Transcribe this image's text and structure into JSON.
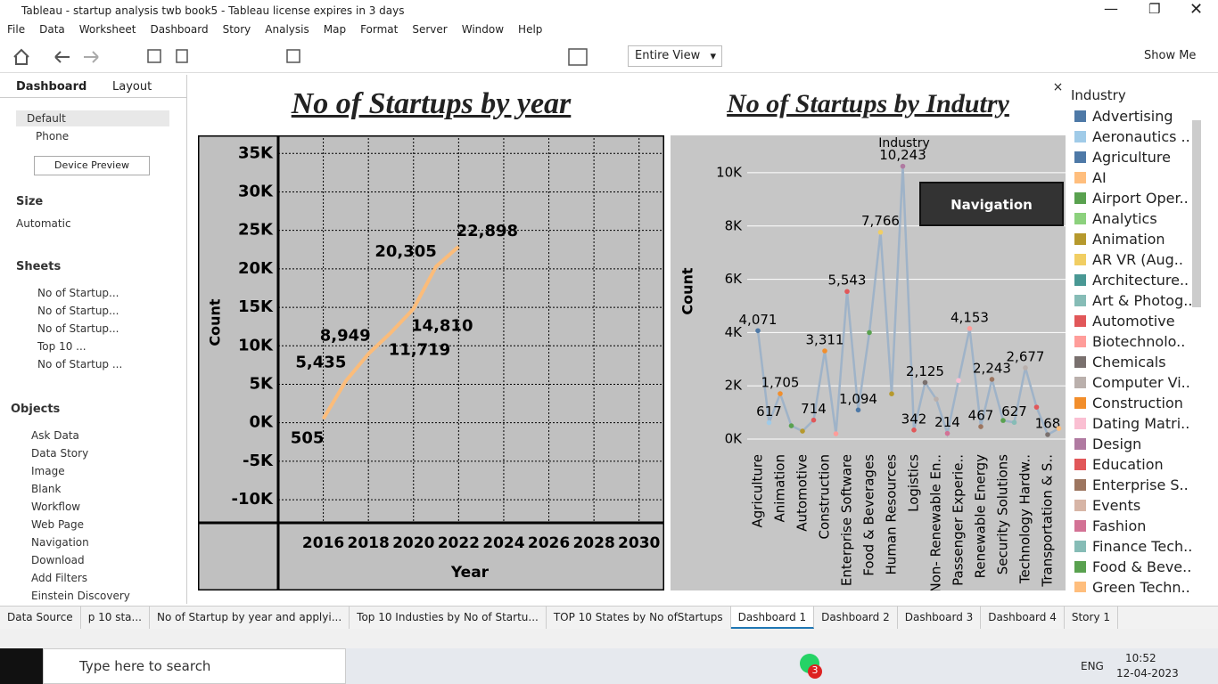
{
  "window_title": "Tableau - startup analysis twb book5 - Tableau license expires in 3 days",
  "menu": [
    "File",
    "Data",
    "Worksheet",
    "Dashboard",
    "Story",
    "Analysis",
    "Map",
    "Format",
    "Server",
    "Window",
    "Help"
  ],
  "toolbar": {
    "fit": "Entire View",
    "show_me": "Show Me"
  },
  "side_panel": {
    "tabs": [
      "Dashboard",
      "Layout"
    ],
    "devices": [
      "Default",
      "Phone"
    ],
    "device_preview": "Device Preview",
    "size_label": "Size",
    "size_value": "Automatic",
    "sheets_label": "Sheets",
    "sheets": [
      "No of Startup...",
      "No of Startup...",
      "No of Startup...",
      "Top 10 ...",
      "No of Startup ..."
    ],
    "objects_label": "Objects",
    "objects": [
      "Ask Data",
      "Data Story",
      "Image",
      "Blank",
      "Workflow",
      "Web Page",
      "Navigation",
      "Download",
      "Add Filters",
      "Einstein Discovery"
    ]
  },
  "chart_data": [
    {
      "type": "line",
      "title": "No of Startups by year",
      "x": [
        2016,
        2017,
        2018,
        2019,
        2020,
        2021,
        2022
      ],
      "values": [
        505,
        5435,
        8949,
        11719,
        14810,
        20305,
        22898
      ],
      "value_labels": [
        "505",
        "5,435",
        "8,949",
        "11,719",
        "14,810",
        "20,305",
        "22,898"
      ],
      "color": "#fbbc7a",
      "xlim": [
        2014,
        2031
      ],
      "xticks": [
        2016,
        2018,
        2020,
        2022,
        2024,
        2026,
        2028,
        2030
      ],
      "ylim": [
        -13000,
        37000
      ],
      "yticks": [
        {
          "value": -10000,
          "label": "-10K"
        },
        {
          "value": -5000,
          "label": "-5K"
        },
        {
          "value": 0,
          "label": "0K"
        },
        {
          "value": 5000,
          "label": "5K"
        },
        {
          "value": 10000,
          "label": "10K"
        },
        {
          "value": 15000,
          "label": "15K"
        },
        {
          "value": 20000,
          "label": "20K"
        },
        {
          "value": 25000,
          "label": "25K"
        },
        {
          "value": 30000,
          "label": "30K"
        },
        {
          "value": 35000,
          "label": "35K"
        }
      ],
      "xlabel": "Year",
      "ylabel": "Count",
      "grid": true
    },
    {
      "type": "line",
      "title": "No of Startups by Indutry",
      "header": "Industry",
      "categories": [
        "Agriculture",
        null,
        "Animation",
        null,
        "Automotive",
        null,
        "Construction",
        null,
        "Enterprise Software",
        null,
        "Food & Beverages",
        null,
        "Human Resources",
        null,
        "Logistics",
        null,
        "Non- Renewable En..",
        null,
        "Passenger Experie..",
        null,
        "Renewable Energy",
        null,
        "Security Solutions",
        null,
        "Technology Hardw..",
        null,
        "Transportation & S..",
        null
      ],
      "values": [
        4071,
        617,
        1705,
        500,
        300,
        714,
        3311,
        200,
        5543,
        1094,
        4000,
        7766,
        1700,
        10243,
        342,
        2125,
        1500,
        214,
        2200,
        4153,
        467,
        2243,
        700,
        627,
        2677,
        1200,
        168,
        400
      ],
      "value_labels": [
        "4,071",
        "617",
        "1,705",
        null,
        null,
        "714",
        "3,311",
        null,
        "5,543",
        "1,094",
        null,
        "7,766",
        null,
        "10,243",
        "342",
        "2,125",
        null,
        "214",
        null,
        "4,153",
        "467",
        "2,243",
        null,
        "627",
        "2,677",
        null,
        "168",
        null
      ],
      "colors": [
        "#4e79a7",
        "#a0cbe8",
        "#f28e2b",
        "#59a14f",
        "#b6992d",
        "#e15759",
        "#f28e2b",
        "#ff9d9a",
        "#e15759",
        "#4e79a7",
        "#59a14f",
        "#f1ce63",
        "#b6992d",
        "#b07aa1",
        "#e15759",
        "#79706e",
        "#bab0ac",
        "#d37295",
        "#fabfd2",
        "#ff9d9a",
        "#9d7660",
        "#9d7660",
        "#59a14f",
        "#86bcb6",
        "#bab0ac",
        "#e15759",
        "#79706e",
        "#ffbe7d"
      ],
      "ylim": [
        -400,
        10800
      ],
      "yticks": [
        {
          "value": 0,
          "label": "0K"
        },
        {
          "value": 2000,
          "label": "2K"
        },
        {
          "value": 4000,
          "label": "4K"
        },
        {
          "value": 6000,
          "label": "6K"
        },
        {
          "value": 8000,
          "label": "8K"
        },
        {
          "value": 10000,
          "label": "10K"
        }
      ],
      "ylabel": "Count",
      "grid": true
    }
  ],
  "navigation_button": "Navigation",
  "legend": {
    "title": "Industry",
    "entries": [
      {
        "name": "Advertising",
        "color": "#4e79a7"
      },
      {
        "name": "Aeronautics ..",
        "color": "#a0cbe8"
      },
      {
        "name": "Agriculture",
        "color": "#4e79a7"
      },
      {
        "name": "AI",
        "color": "#ffbe7d"
      },
      {
        "name": "Airport Oper..",
        "color": "#59a14f"
      },
      {
        "name": "Analytics",
        "color": "#8cd17d"
      },
      {
        "name": "Animation",
        "color": "#b6992d"
      },
      {
        "name": "AR VR (Aug..",
        "color": "#f1ce63"
      },
      {
        "name": "Architecture..",
        "color": "#499894"
      },
      {
        "name": "Art & Photog..",
        "color": "#86bcb6"
      },
      {
        "name": "Automotive",
        "color": "#e15759"
      },
      {
        "name": "Biotechnolo..",
        "color": "#ff9d9a"
      },
      {
        "name": "Chemicals",
        "color": "#79706e"
      },
      {
        "name": "Computer Vi..",
        "color": "#bab0ac"
      },
      {
        "name": "Construction",
        "color": "#f28e2b"
      },
      {
        "name": "Dating Matri..",
        "color": "#fabfd2"
      },
      {
        "name": "Design",
        "color": "#b07aa1"
      },
      {
        "name": "Education",
        "color": "#e15759"
      },
      {
        "name": "Enterprise S..",
        "color": "#9d7660"
      },
      {
        "name": "Events",
        "color": "#d7b5a6"
      },
      {
        "name": "Fashion",
        "color": "#d37295"
      },
      {
        "name": "Finance Tech..",
        "color": "#86bcb6"
      },
      {
        "name": "Food & Beve..",
        "color": "#59a14f"
      },
      {
        "name": "Green Techn..",
        "color": "#ffbe7d"
      }
    ]
  },
  "sheet_tabs": [
    "Data Source",
    "p 10 sta...",
    "No of Startup by year and applyi...",
    "Top 10 Industies by No of Startu...",
    "TOP 10 States by No ofStartups",
    "Dashboard 1",
    "Dashboard 2",
    "Dashboard 3",
    "Dashboard 4",
    "Story 1"
  ],
  "taskbar": {
    "search": "Type here to search",
    "badge": "3",
    "language": "ENG",
    "time": "10:52",
    "date": "12-04-2023"
  }
}
